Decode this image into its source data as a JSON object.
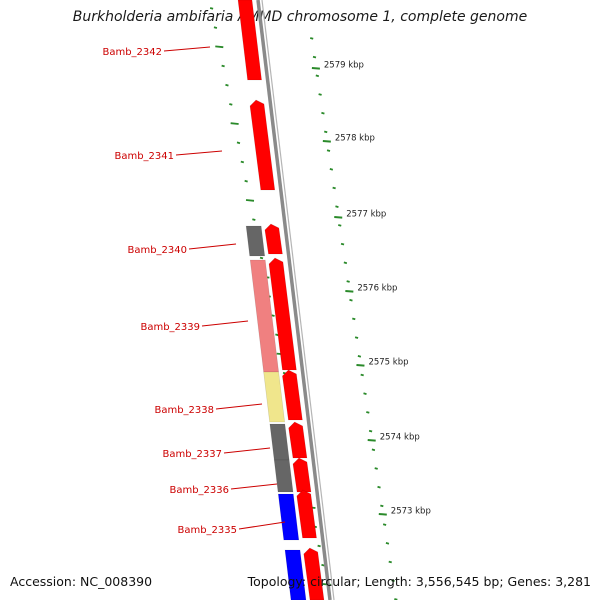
{
  "title": "Burkholderia ambifaria AMMD chromosome 1, complete genome",
  "footer": {
    "accession": "Accession: NC_008390",
    "summary": "Topology: circular; Length: 3,556,545 bp; Genes: 3,281"
  },
  "colors": {
    "label": "#cc0000",
    "forward_strand_gene": "#ff0000",
    "backbone": "#8a8a8a",
    "ticks": "#2a8a2a",
    "gray_feature": "#666666",
    "salmon_feature": "#f08080",
    "yellow_feature": "#f0e68c",
    "blue_feature": "#0000ff"
  },
  "genes": [
    {
      "name": "Bamb_2342"
    },
    {
      "name": "Bamb_2341"
    },
    {
      "name": "Bamb_2340"
    },
    {
      "name": "Bamb_2339"
    },
    {
      "name": "Bamb_2338"
    },
    {
      "name": "Bamb_2337"
    },
    {
      "name": "Bamb_2336"
    },
    {
      "name": "Bamb_2335"
    }
  ],
  "scale_ticks": [
    "2579 kbp",
    "2578 kbp",
    "2577 kbp",
    "2576 kbp",
    "2575 kbp",
    "2574 kbp",
    "2573 kbp"
  ]
}
